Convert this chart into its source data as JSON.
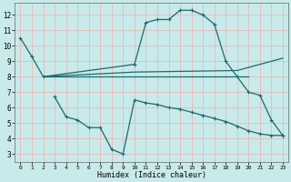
{
  "bg_color": "#c8eaea",
  "grid_color": "#e8b8b8",
  "line_color": "#1a6b6b",
  "xlabel": "Humidex (Indice chaleur)",
  "xlim": [
    -0.5,
    23.5
  ],
  "ylim": [
    2.5,
    12.8
  ],
  "yticks": [
    3,
    4,
    5,
    6,
    7,
    8,
    9,
    10,
    11,
    12
  ],
  "xticks": [
    0,
    1,
    2,
    3,
    4,
    5,
    6,
    7,
    8,
    9,
    10,
    11,
    12,
    13,
    14,
    15,
    16,
    17,
    18,
    19,
    20,
    21,
    22,
    23
  ],
  "line1_x": [
    0,
    1,
    2,
    10,
    11,
    12,
    13,
    14,
    15,
    16,
    17,
    18,
    19,
    20,
    21,
    22,
    23
  ],
  "line1_y": [
    10.5,
    9.3,
    8.0,
    8.8,
    11.5,
    11.7,
    11.7,
    12.3,
    12.3,
    12.0,
    11.4,
    9.0,
    8.0,
    7.0,
    6.8,
    5.2,
    4.2
  ],
  "line2_x": [
    2,
    3,
    19,
    20
  ],
  "line2_y": [
    8.0,
    8.0,
    8.0,
    8.0
  ],
  "line3_x": [
    2,
    10,
    19,
    23
  ],
  "line3_y": [
    8.0,
    8.3,
    8.4,
    9.2
  ],
  "line4_x": [
    3,
    4,
    5,
    6,
    7,
    8,
    9,
    10,
    11,
    12,
    13,
    14,
    15,
    16,
    17,
    18,
    19,
    20,
    21,
    22,
    23
  ],
  "line4_y": [
    6.7,
    5.4,
    5.2,
    4.7,
    4.7,
    3.3,
    3.0,
    6.5,
    6.3,
    6.2,
    6.0,
    5.9,
    5.7,
    5.5,
    5.3,
    5.1,
    4.8,
    4.5,
    4.3,
    4.2,
    4.2
  ]
}
